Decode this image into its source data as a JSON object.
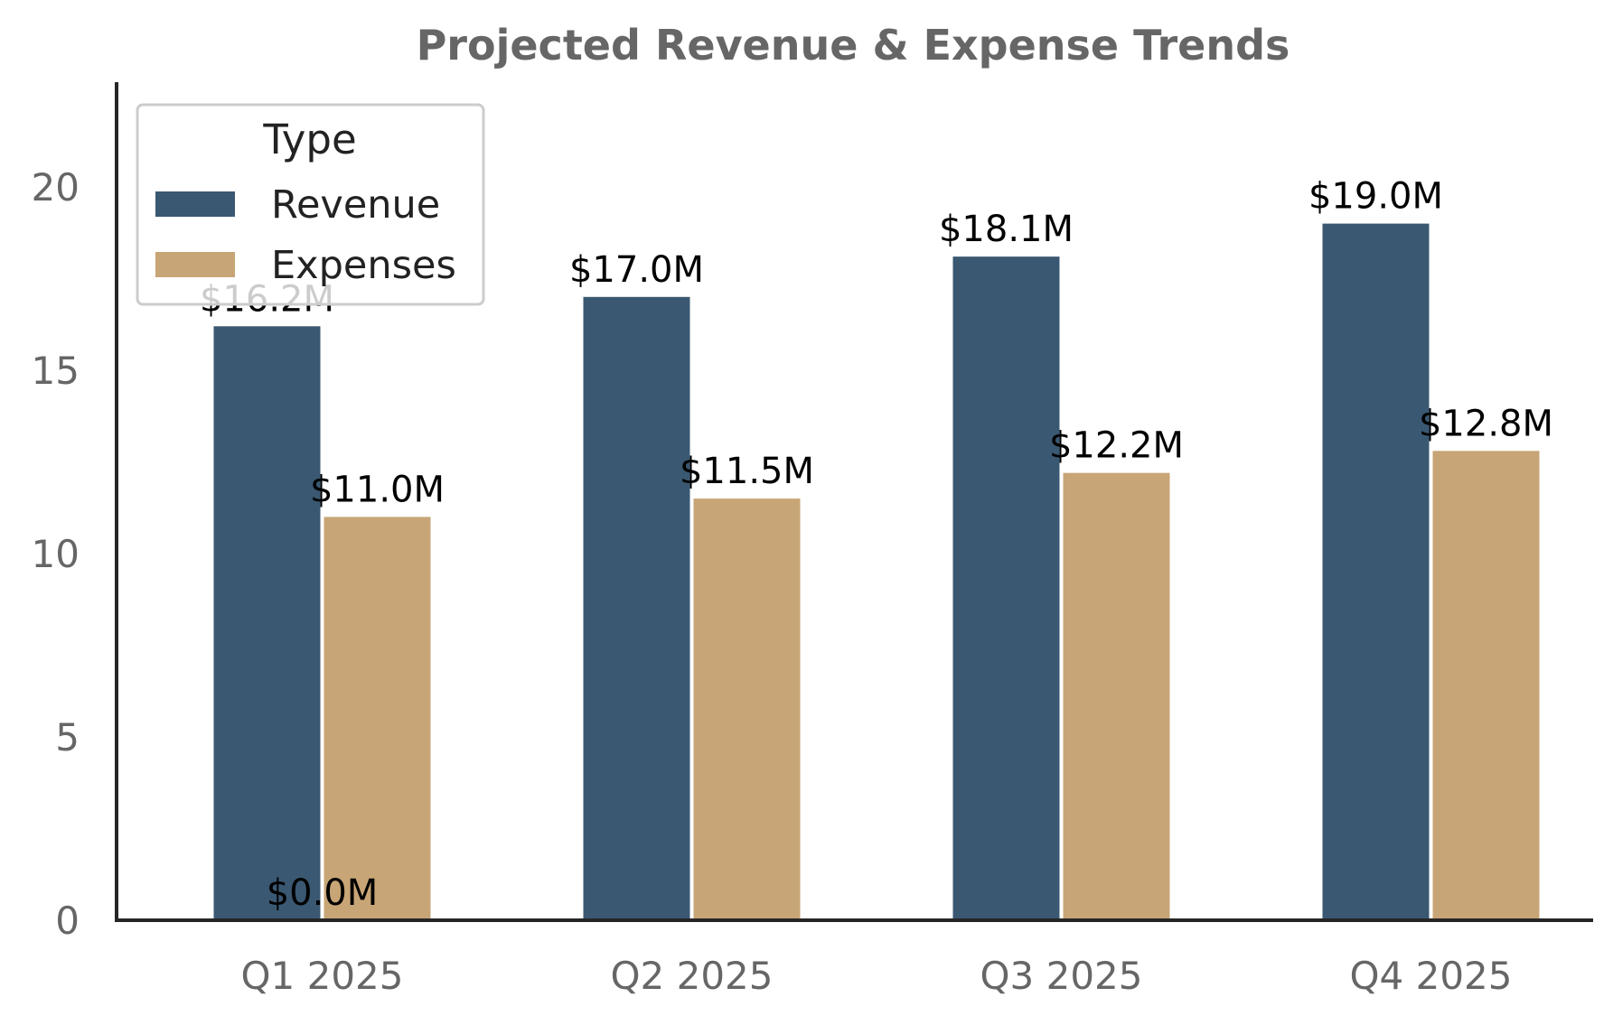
{
  "chart_data": {
    "type": "bar",
    "title": "Projected Revenue & Expense Trends",
    "xlabel": "",
    "ylabel": "",
    "categories": [
      "Q1 2025",
      "Q2 2025",
      "Q3 2025",
      "Q4 2025"
    ],
    "series": [
      {
        "name": "Revenue",
        "color": "#3a5872",
        "values": [
          16.2,
          17.0,
          18.1,
          19.0
        ],
        "labels": [
          "$16.2M",
          "$17.0M",
          "$18.1M",
          "$19.0M"
        ]
      },
      {
        "name": "Expenses",
        "color": "#c8a576",
        "values": [
          11.0,
          11.5,
          12.2,
          12.8
        ],
        "labels": [
          "$11.0M",
          "$11.5M",
          "$12.2M",
          "$12.8M"
        ]
      }
    ],
    "extra_annotation": "$0.0M",
    "ylim": [
      0,
      22.8
    ],
    "yticks": [
      0,
      5,
      10,
      15,
      20
    ],
    "grid": false,
    "legend": {
      "title": "Type",
      "position": "top-left"
    }
  }
}
